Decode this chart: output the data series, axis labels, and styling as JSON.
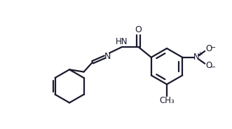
{
  "bg_color": "#ffffff",
  "line_color": "#1a1a2e",
  "line_width": 1.6,
  "font_size": 8.5,
  "fig_width": 3.31,
  "fig_height": 1.84,
  "dpi": 100,
  "xlim": [
    0,
    10
  ],
  "ylim": [
    0,
    5.56
  ]
}
